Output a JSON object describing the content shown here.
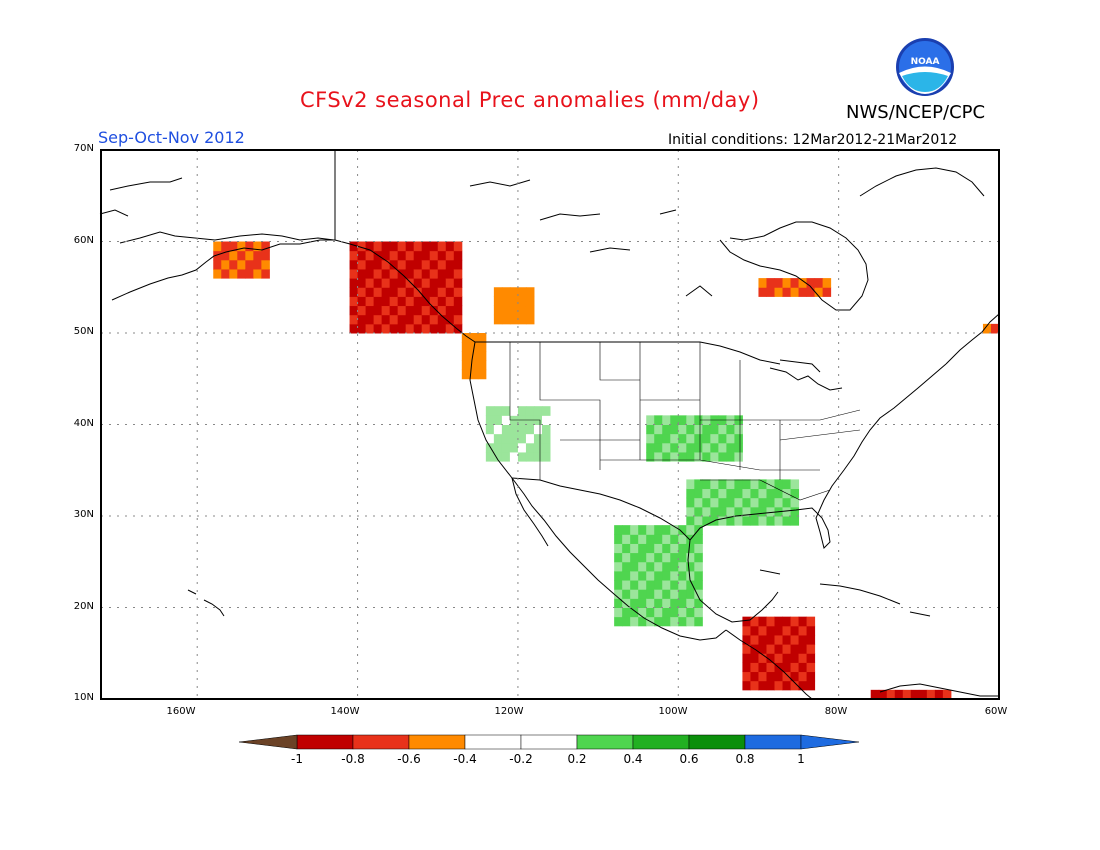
{
  "header": {
    "title": "CFSv2 seasonal Prec anomalies (mm/day)",
    "agency": "NWS/NCEP/CPC",
    "season": "Sep-Oct-Nov 2012",
    "initial_conditions": "Initial conditions: 12Mar2012-21Mar2012",
    "logo_text": "NOAA"
  },
  "map": {
    "lat_range": [
      10,
      70
    ],
    "lon_range": [
      -172,
      -60
    ],
    "grid": true,
    "lat_labels": [
      "70N",
      "60N",
      "50N",
      "40N",
      "30N",
      "20N",
      "10N"
    ],
    "lon_labels": [
      "160W",
      "140W",
      "120W",
      "100W",
      "80W",
      "60W"
    ]
  },
  "colorbar": {
    "labels": [
      "-1",
      "-0.8",
      "-0.6",
      "-0.4",
      "-0.2",
      "0.2",
      "0.4",
      "0.6",
      "0.8",
      "1"
    ],
    "colors": [
      "#6b4226",
      "#c00000",
      "#e8321a",
      "#ff8a00",
      "#ffffff",
      "#9be59b",
      "#4fd54f",
      "#22b022",
      "#0b8f0b",
      "#1e6be0"
    ]
  },
  "anomaly_regions": [
    {
      "name": "Alaska southern coast",
      "lon": [
        -158,
        -151
      ],
      "lat": [
        56,
        60
      ],
      "level": -0.6
    },
    {
      "name": "Gulf of Alaska / BC coast",
      "lon": [
        -141,
        -127
      ],
      "lat": [
        50,
        60
      ],
      "level": -0.8
    },
    {
      "name": "Pacific Northwest coast",
      "lon": [
        -127,
        -124
      ],
      "lat": [
        45,
        50
      ],
      "level": -0.4
    },
    {
      "name": "Interior BC",
      "lon": [
        -123,
        -118
      ],
      "lat": [
        51,
        55
      ],
      "level": -0.4
    },
    {
      "name": "Hudson Bay area",
      "lon": [
        -90,
        -81
      ],
      "lat": [
        54,
        56
      ],
      "level": -0.4
    },
    {
      "name": "Labrador",
      "lon": [
        -62,
        -60
      ],
      "lat": [
        50,
        51
      ],
      "level": -0.4
    },
    {
      "name": "Central Plains",
      "lon": [
        -104,
        -92
      ],
      "lat": [
        36,
        41
      ],
      "level": 0.4
    },
    {
      "name": "Gulf Coast",
      "lon": [
        -99,
        -85
      ],
      "lat": [
        29,
        34
      ],
      "level": 0.4
    },
    {
      "name": "Mexico",
      "lon": [
        -108,
        -97
      ],
      "lat": [
        18,
        29
      ],
      "level": 0.4
    },
    {
      "name": "California / Great Basin",
      "lon": [
        -124,
        -116
      ],
      "lat": [
        36,
        42
      ],
      "level": 0.2
    },
    {
      "name": "Central America",
      "lon": [
        -92,
        -83
      ],
      "lat": [
        11,
        19
      ],
      "level": -0.8
    },
    {
      "name": "Northern South America",
      "lon": [
        -76,
        -66
      ],
      "lat": [
        10,
        11
      ],
      "level": -0.8
    }
  ]
}
